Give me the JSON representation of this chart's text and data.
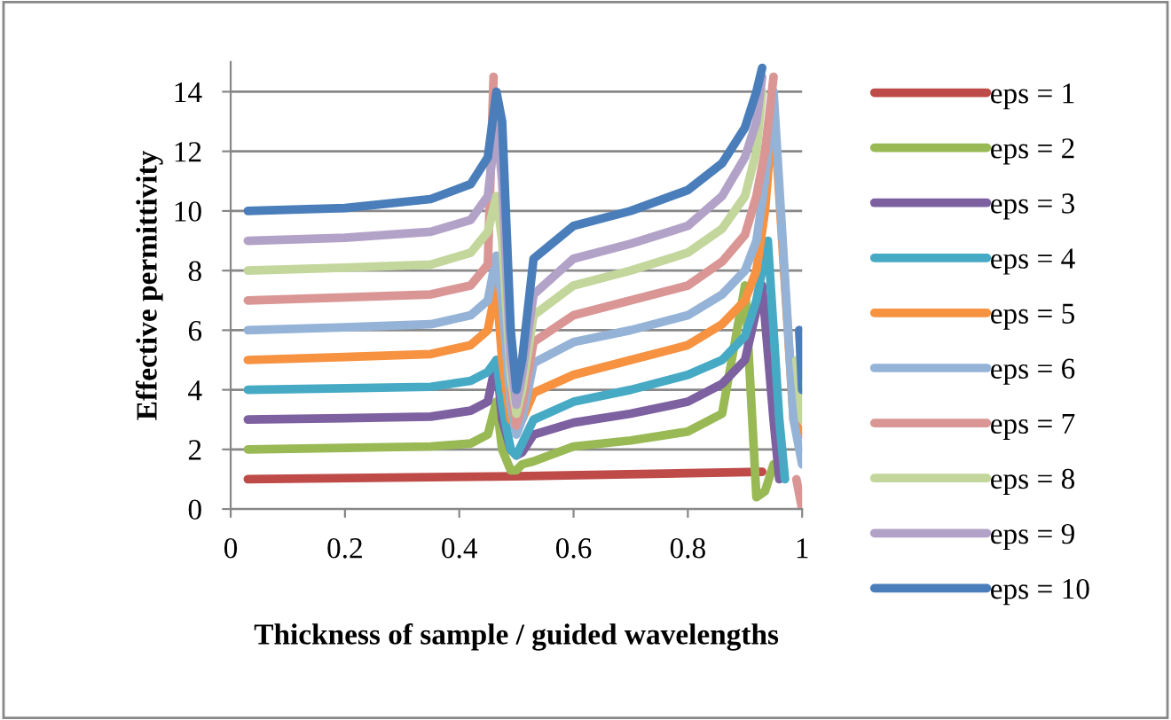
{
  "chart_data": {
    "type": "line",
    "xlabel": "Thickness of sample / guided wavelengths",
    "ylabel": "Effective permittivity",
    "xlim": [
      0,
      1
    ],
    "xticks": [
      0,
      0.2,
      0.4,
      0.6,
      0.8,
      1
    ],
    "ylim": [
      0,
      15
    ],
    "yticks": [
      0,
      2,
      4,
      6,
      8,
      10,
      12,
      14
    ],
    "grid": "y",
    "legend": "right",
    "marker": "none",
    "line_style": "solid",
    "series": [
      {
        "name": "eps = 1",
        "color": "#be4b48",
        "x": [
          0.03,
          0.5,
          0.93
        ],
        "values": [
          1,
          1.1,
          1.25
        ]
      },
      {
        "name": "eps = 2",
        "color": "#98b954",
        "x": [
          0.03,
          0.2,
          0.35,
          0.42,
          0.45,
          0.465,
          0.475,
          0.49,
          0.5,
          0.51,
          0.53,
          0.6,
          0.7,
          0.8,
          0.86,
          0.9,
          0.92,
          0.935,
          0.95
        ],
        "values": [
          2,
          2.05,
          2.1,
          2.2,
          2.5,
          3.6,
          2,
          1.3,
          1.3,
          1.5,
          1.6,
          2.1,
          2.3,
          2.6,
          3.2,
          7.5,
          0.4,
          0.6,
          1.5
        ]
      },
      {
        "name": "eps = 3",
        "color": "#7d60a0",
        "x": [
          0.03,
          0.2,
          0.35,
          0.42,
          0.45,
          0.465,
          0.475,
          0.49,
          0.5,
          0.51,
          0.53,
          0.6,
          0.7,
          0.8,
          0.86,
          0.9,
          0.93,
          0.95,
          0.96
        ],
        "values": [
          3,
          3.05,
          3.1,
          3.3,
          3.6,
          5,
          3,
          2,
          1.8,
          1.9,
          2.5,
          2.9,
          3.2,
          3.6,
          4.2,
          5,
          7.5,
          3,
          1
        ]
      },
      {
        "name": "eps = 4",
        "color": "#46aac5",
        "x": [
          0.03,
          0.2,
          0.35,
          0.42,
          0.45,
          0.465,
          0.475,
          0.49,
          0.5,
          0.51,
          0.53,
          0.6,
          0.7,
          0.8,
          0.86,
          0.9,
          0.92,
          0.94,
          0.96,
          0.97
        ],
        "values": [
          4,
          4.05,
          4.1,
          4.3,
          4.6,
          5,
          3.5,
          2,
          1.8,
          2.2,
          3,
          3.6,
          4,
          4.5,
          5,
          5.8,
          7,
          9,
          3,
          1
        ]
      },
      {
        "name": "eps = 5",
        "color": "#f69240",
        "x": [
          0.03,
          0.2,
          0.35,
          0.42,
          0.45,
          0.465,
          0.475,
          0.49,
          0.5,
          0.51,
          0.53,
          0.6,
          0.7,
          0.8,
          0.86,
          0.9,
          0.92,
          0.935,
          0.95,
          0.985,
          1.0
        ],
        "values": [
          5,
          5.1,
          5.2,
          5.5,
          6,
          7.5,
          5,
          3,
          2.8,
          3,
          3.9,
          4.5,
          5,
          5.5,
          6.2,
          7,
          8,
          10,
          13.5,
          3,
          2.5
        ]
      },
      {
        "name": "eps = 6",
        "color": "#95b3d7",
        "x": [
          0.03,
          0.2,
          0.35,
          0.42,
          0.45,
          0.465,
          0.475,
          0.49,
          0.5,
          0.51,
          0.53,
          0.6,
          0.7,
          0.8,
          0.86,
          0.9,
          0.92,
          0.935,
          0.95,
          0.985,
          1.0
        ],
        "values": [
          6,
          6.1,
          6.2,
          6.5,
          7,
          8.5,
          7,
          3.5,
          2.5,
          3,
          4.9,
          5.6,
          6,
          6.5,
          7.2,
          8,
          9,
          11,
          14,
          3,
          1.5
        ]
      },
      {
        "name": "eps = 7",
        "color": "#d99694",
        "x": [
          0.03,
          0.2,
          0.35,
          0.42,
          0.45,
          0.46,
          0.48,
          0.49,
          0.5,
          0.51,
          0.53,
          0.6,
          0.7,
          0.8,
          0.86,
          0.9,
          0.92,
          0.935,
          0.95,
          0.96,
          0.99,
          1.0
        ],
        "values": [
          7,
          7.1,
          7.2,
          7.5,
          8.2,
          14.5,
          null,
          4,
          2.8,
          3.5,
          5.6,
          6.5,
          7,
          7.5,
          8.3,
          9.2,
          10.5,
          12,
          14.5,
          null,
          1,
          0
        ]
      },
      {
        "name": "eps = 8",
        "color": "#c3d69b",
        "x": [
          0.03,
          0.2,
          0.35,
          0.42,
          0.45,
          0.465,
          0.475,
          0.49,
          0.5,
          0.51,
          0.53,
          0.6,
          0.7,
          0.8,
          0.86,
          0.9,
          0.92,
          0.93,
          0.96,
          0.99,
          1.0
        ],
        "values": [
          8,
          8.1,
          8.2,
          8.6,
          9.3,
          10.5,
          9,
          4.5,
          3.2,
          4,
          6.5,
          7.5,
          8,
          8.6,
          9.4,
          10.5,
          12,
          14,
          null,
          5,
          3
        ]
      },
      {
        "name": "eps = 9",
        "color": "#b3a2c7",
        "x": [
          0.03,
          0.2,
          0.35,
          0.42,
          0.45,
          0.465,
          0.475,
          0.49,
          0.5,
          0.51,
          0.53,
          0.6,
          0.7,
          0.8,
          0.86,
          0.9,
          0.92,
          0.93,
          0.96,
          0.995,
          1.0
        ],
        "values": [
          9,
          9.1,
          9.3,
          9.7,
          10.5,
          13,
          11,
          5,
          3.5,
          4.5,
          7.2,
          8.4,
          8.9,
          9.5,
          10.5,
          11.8,
          13,
          14.5,
          null,
          6,
          4.5
        ]
      },
      {
        "name": "eps = 10",
        "color": "#4a7ebb",
        "x": [
          0.03,
          0.2,
          0.35,
          0.42,
          0.45,
          0.465,
          0.475,
          0.49,
          0.5,
          0.51,
          0.53,
          0.6,
          0.7,
          0.8,
          0.86,
          0.9,
          0.92,
          0.93,
          0.96,
          0.995,
          1.0
        ],
        "values": [
          10,
          10.1,
          10.4,
          10.9,
          11.8,
          14,
          13,
          6,
          4,
          5,
          8.4,
          9.5,
          10,
          10.7,
          11.6,
          12.8,
          14,
          14.8,
          null,
          6,
          4
        ]
      }
    ]
  }
}
